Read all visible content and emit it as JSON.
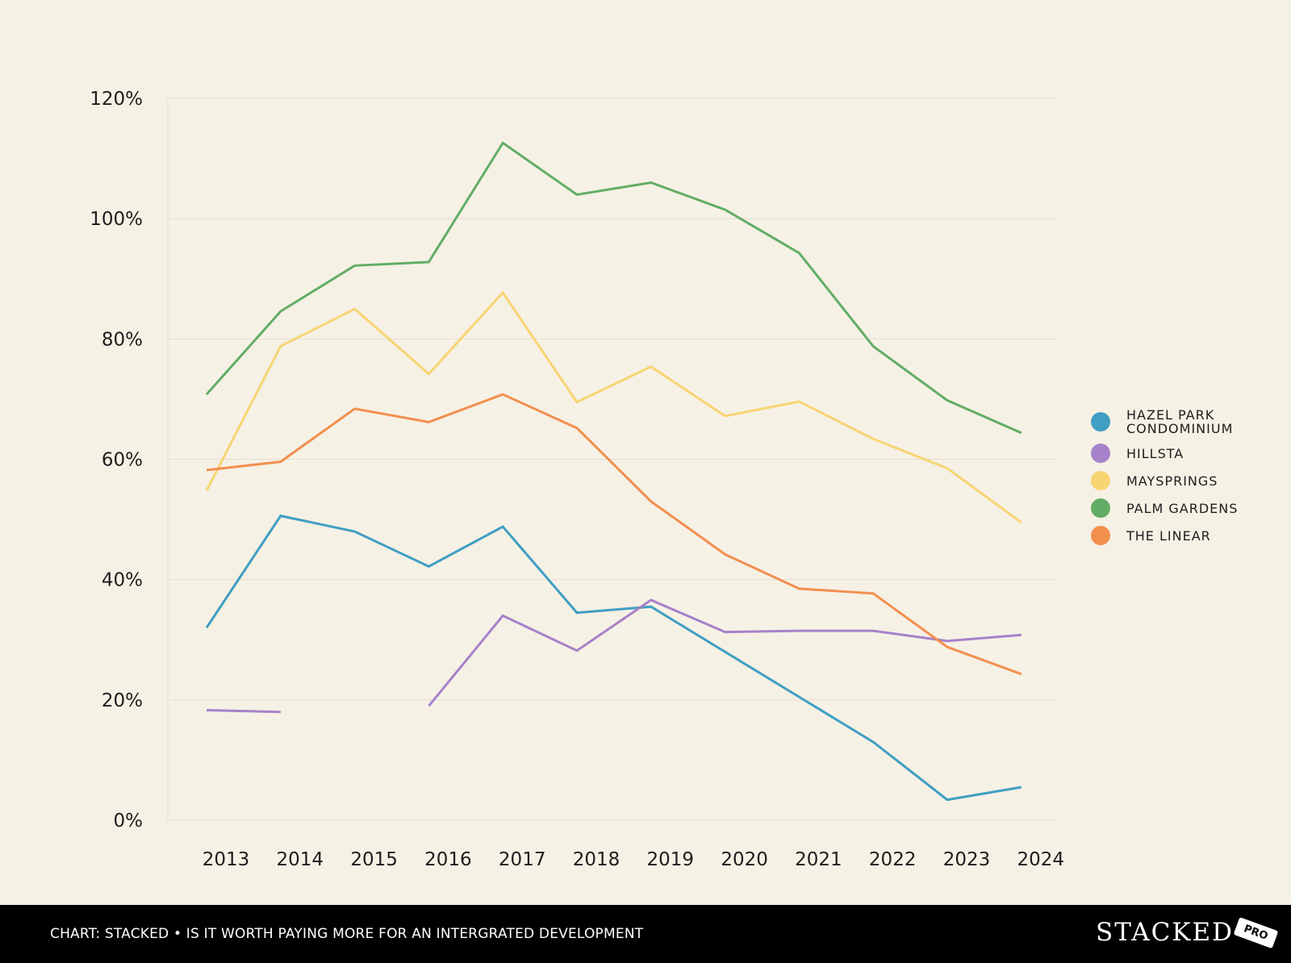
{
  "chart_data": {
    "type": "line",
    "x": [
      "2013",
      "2014",
      "2015",
      "2016",
      "2017",
      "2018",
      "2019",
      "2020",
      "2021",
      "2022",
      "2023",
      "2024"
    ],
    "y_ticks": [
      "0%",
      "20%",
      "40%",
      "60%",
      "80%",
      "100%",
      "120%"
    ],
    "y_tick_values": [
      0,
      20,
      40,
      60,
      80,
      100,
      120
    ],
    "ylim": [
      0,
      120
    ],
    "grid": true,
    "legend_position": "right",
    "series": [
      {
        "name": "HAZEL PARK CONDOMINIUM",
        "color": "#3f9ec3",
        "values": [
          32,
          50.6,
          48,
          42.2,
          48.8,
          34.5,
          35.5,
          28,
          20.5,
          13,
          3.4,
          5.5
        ]
      },
      {
        "name": "HILLSTA",
        "color": "#a682c9",
        "values": [
          18.3,
          18,
          null,
          19,
          34,
          28.2,
          36.6,
          31.3,
          31.5,
          31.5,
          29.8,
          30.8
        ]
      },
      {
        "name": "MAYSPRINGS",
        "color": "#f8d473",
        "values": [
          54.8,
          78.8,
          85,
          74.2,
          87.7,
          69.5,
          75.4,
          67.2,
          69.6,
          63.4,
          58.5,
          49.5
        ]
      },
      {
        "name": "PALM GARDENS",
        "color": "#62ad66",
        "values": [
          70.8,
          84.6,
          92.2,
          92.8,
          112.6,
          104,
          106,
          101.5,
          94.3,
          78.8,
          69.8,
          64.4
        ]
      },
      {
        "name": "THE LINEAR",
        "color": "#f28f4f",
        "values": [
          58.2,
          59.6,
          68.4,
          66.2,
          70.8,
          65.2,
          53,
          44.2,
          38.5,
          37.7,
          28.8,
          24.3
        ]
      }
    ]
  },
  "footer": {
    "caption": "CHART: STACKED • IS IT WORTH PAYING MORE FOR AN INTERGRATED DEVELOPMENT",
    "brand": "STACKED",
    "badge": "PRO"
  }
}
